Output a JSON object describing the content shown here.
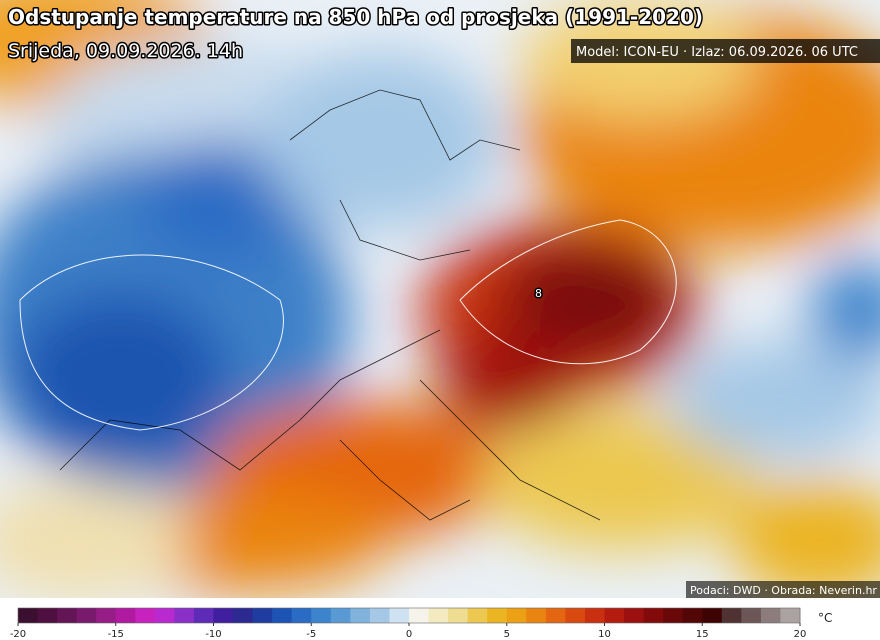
{
  "header": {
    "title": "Odstupanje temperature na 850 hPa od prosjeka (1991-2020)",
    "subtitle": "Srijeda, 09.09.2026. 14h",
    "model": "Model: ICON-EU · Izlaz: 06.09.2026. 06 UTC"
  },
  "credits": "Podaci: DWD · Obrada: Neverin.hr",
  "contour_label": "8",
  "colorbar": {
    "lim": [
      -20,
      20
    ],
    "ticks": [
      -20,
      -15,
      -10,
      -5,
      0,
      5,
      10,
      15,
      20
    ],
    "unit": "°C",
    "colors": [
      "#3b0f2f",
      "#4d1040",
      "#631555",
      "#7a1a6c",
      "#951d85",
      "#b01aa0",
      "#c822be",
      "#b82ad0",
      "#8a2fc8",
      "#5e2ab8",
      "#3f1f9e",
      "#2c2a90",
      "#1f3ca0",
      "#1d54b4",
      "#2a6cc4",
      "#3c84cc",
      "#5a9ad4",
      "#80b2dc",
      "#a4c8e6",
      "#cfe2f2",
      "#f6f4ea",
      "#f3eac0",
      "#eedc90",
      "#ecc850",
      "#ebb422",
      "#eca014",
      "#ea8410",
      "#e56610",
      "#d84a10",
      "#c83010",
      "#b41c10",
      "#9c1010",
      "#820a0a",
      "#680808",
      "#520606",
      "#3e0404",
      "#503232",
      "#6c5656",
      "#8c7c7c",
      "#aca2a2"
    ]
  }
}
